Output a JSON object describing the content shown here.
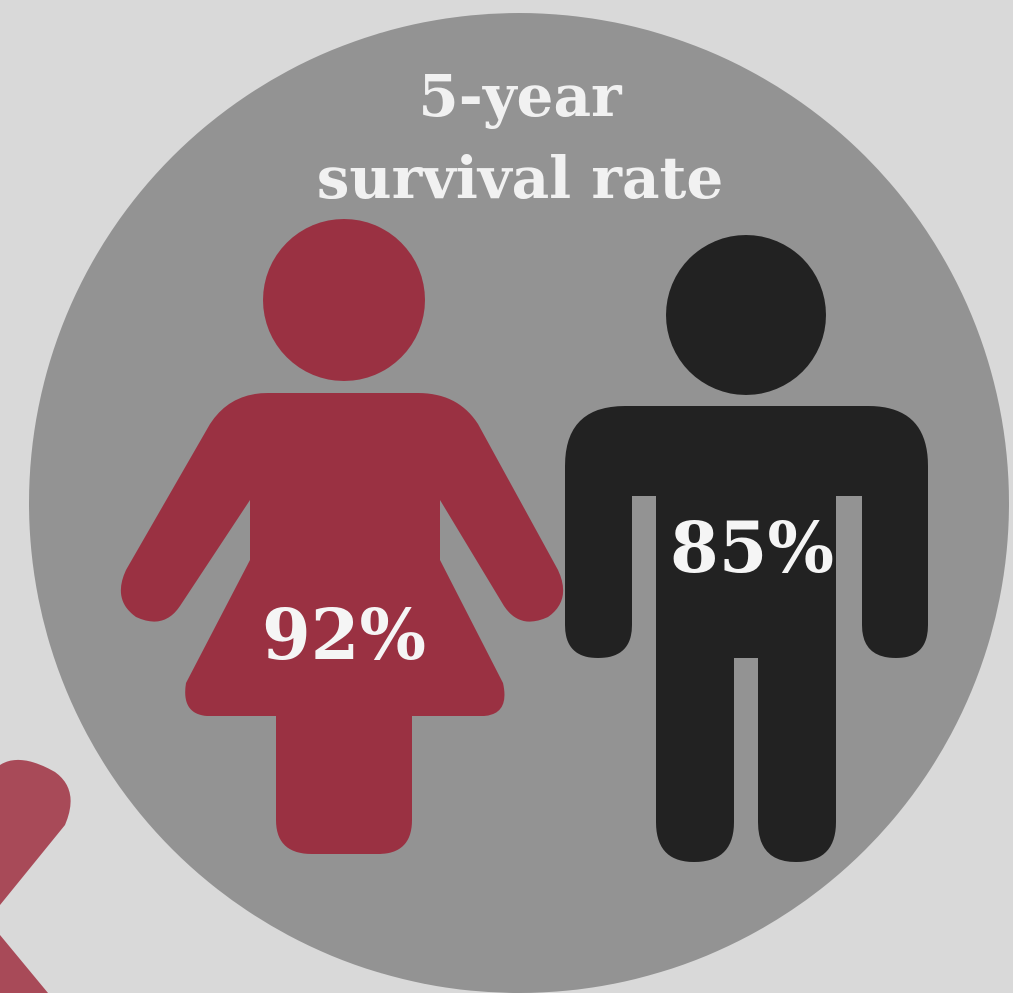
{
  "infographic": {
    "title_line1": "5-year",
    "title_line2": "survival rate",
    "colors": {
      "background": "#d9d9d9",
      "circle": "#939393",
      "female": "#9a3142",
      "male": "#222222",
      "text": "#f1f1f1"
    },
    "female": {
      "icon": "female-figure-icon",
      "value": "92%"
    },
    "male": {
      "icon": "male-figure-icon",
      "value": "85%"
    }
  }
}
